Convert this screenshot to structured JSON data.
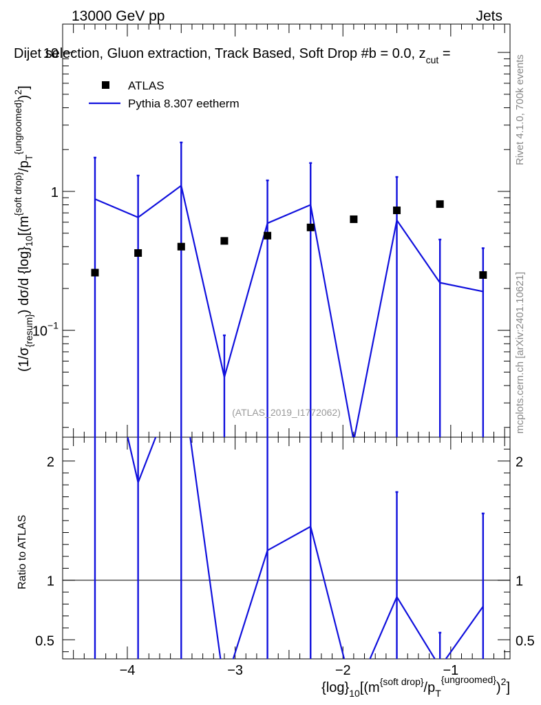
{
  "header": {
    "left": "13000 GeV pp",
    "right": "Jets",
    "title": "Dijet selection, Gluon extraction, Track Based, Soft Drop #b = 0.0, z",
    "title_sub": "cut",
    "title_end": " ="
  },
  "side": {
    "rivet": "Rivet 4.1.0,  700k events",
    "mcplots": "mcplots.cern.ch [arXiv:2401.10621]"
  },
  "watermark": "(ATLAS_2019_I1772062)",
  "legend": {
    "data_label": "ATLAS",
    "mc_label": "Pythia 8.307 eetherm"
  },
  "colors": {
    "data": "#000000",
    "mc": "#1010dd"
  },
  "chart_data": [
    {
      "type": "scatter",
      "role": "main",
      "yscale": "log",
      "xlim": [
        -4.6,
        -0.45
      ],
      "ylim": [
        0.017,
        16
      ],
      "ylabel": "(1/σ_{resum}) dσ/d {log}_10[(m^{soft drop}/p_T^{ungroomed})^2]",
      "ytick_values": [
        0.1,
        1,
        10
      ],
      "ytick_labels": [
        "10^{−1}",
        "1",
        "10"
      ],
      "series": [
        {
          "name": "ATLAS",
          "style": "markers",
          "x": [
            -4.3,
            -3.9,
            -3.5,
            -3.1,
            -2.7,
            -2.3,
            -1.9,
            -1.5,
            -1.1,
            -0.7
          ],
          "y": [
            0.26,
            0.36,
            0.4,
            0.44,
            0.48,
            0.55,
            0.63,
            0.73,
            0.81,
            0.25
          ]
        },
        {
          "name": "Pythia 8.307 eetherm",
          "style": "line",
          "x": [
            -4.3,
            -3.9,
            -3.5,
            -3.1,
            -2.7,
            -2.3,
            -1.9,
            -1.5,
            -1.1,
            -0.7
          ],
          "y": [
            0.88,
            0.65,
            1.1,
            0.046,
            0.59,
            0.8,
            0.016,
            0.62,
            0.22,
            0.19
          ],
          "err_up": [
            1.75,
            1.3,
            2.25,
            0.092,
            1.2,
            1.6,
            0.016,
            1.27,
            0.45,
            0.39
          ],
          "err_down": [
            0.01,
            0.01,
            0.01,
            0.01,
            0.01,
            0.01,
            0.01,
            0.01,
            0.01,
            0.01
          ]
        }
      ]
    },
    {
      "type": "line",
      "role": "ratio",
      "xlim": [
        -4.6,
        -0.45
      ],
      "ylim": [
        0.34,
        2.2
      ],
      "ylabel": "Ratio to ATLAS",
      "xlabel": "{log}_10[(m^{soft drop}/p_T^{ungroomed})^2]",
      "ytick_values": [
        0.5,
        1,
        2
      ],
      "ytick_labels": [
        "0.5",
        "1",
        "2"
      ],
      "xtick_values": [
        -4,
        -3,
        -2,
        -1
      ],
      "xtick_labels": [
        "−4",
        "−3",
        "−2",
        "−1"
      ],
      "reference": 1,
      "series": [
        {
          "name": "Pythia 8.307 eetherm / ATLAS",
          "x": [
            -4.3,
            -3.9,
            -3.5,
            -3.1,
            -2.7,
            -2.3,
            -1.9,
            -1.5,
            -1.1,
            -0.7
          ],
          "y": [
            3.4,
            1.82,
            2.75,
            0.105,
            1.25,
            1.45,
            0.025,
            0.86,
            0.27,
            0.78
          ],
          "err_up": [
            6.8,
            3.6,
            5.6,
            0.21,
            2.5,
            2.9,
            0.05,
            1.74,
            0.56,
            1.56
          ],
          "err_down": [
            0.01,
            0.01,
            0.01,
            0.01,
            0.01,
            0.01,
            0.01,
            0.01,
            0.01,
            0.01
          ]
        }
      ]
    }
  ]
}
